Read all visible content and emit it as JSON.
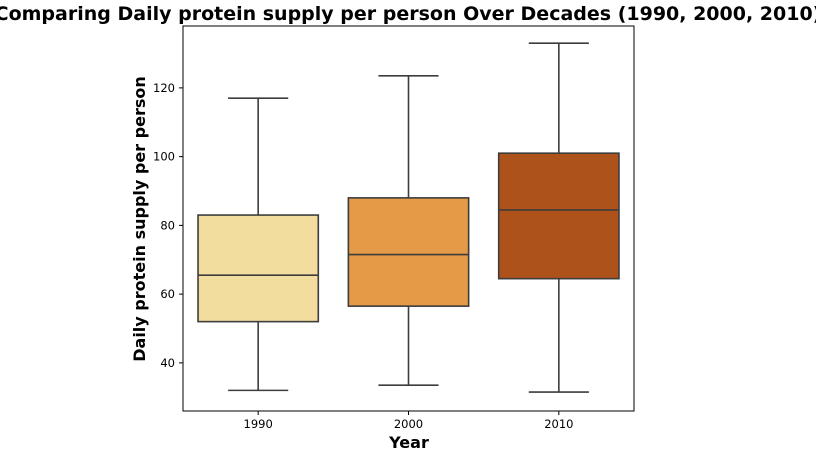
{
  "chart_data": {
    "type": "box",
    "title": "Comparing Daily protein supply per person Over Decades (1990, 2000, 2010)",
    "xlabel": "Year",
    "ylabel": "Daily protein supply per person",
    "categories": [
      "1990",
      "2000",
      "2010"
    ],
    "ylim": [
      26,
      138
    ],
    "yticks": [
      40,
      60,
      80,
      100,
      120
    ],
    "grid": false,
    "legend": "none",
    "boxes": [
      {
        "category": "1990",
        "min": 32,
        "q1": 52,
        "median": 65.5,
        "q3": 83,
        "max": 117,
        "color": "#f2dc9e"
      },
      {
        "category": "2000",
        "min": 33.5,
        "q1": 56.5,
        "median": 71.5,
        "q3": 88,
        "max": 123.5,
        "color": "#e49a46"
      },
      {
        "category": "2010",
        "min": 31.5,
        "q1": 64.5,
        "median": 84.5,
        "q3": 101,
        "max": 133,
        "color": "#ae521c"
      }
    ]
  }
}
